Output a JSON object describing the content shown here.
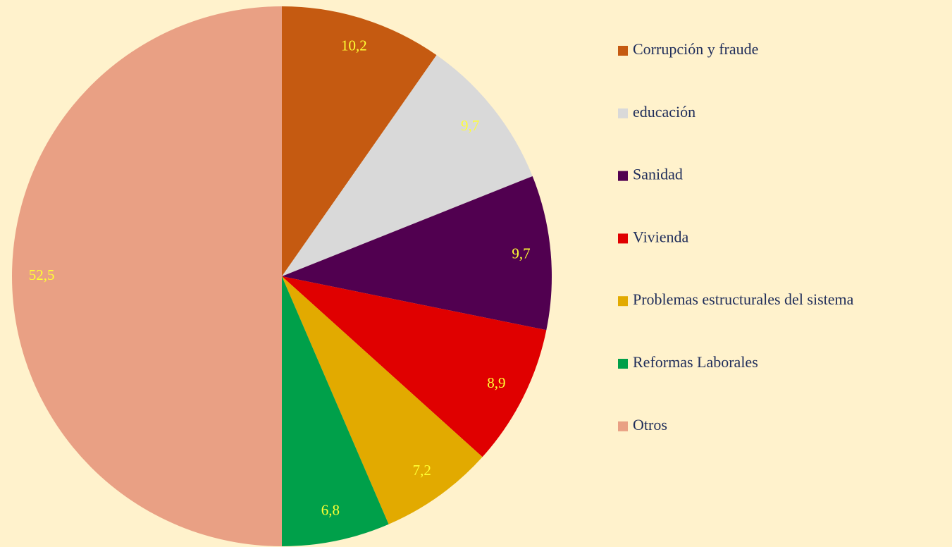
{
  "chart_data": {
    "type": "pie",
    "categories": [
      "Corrupción y fraude",
      "educación",
      "Sanidad",
      "Vivienda",
      "Problemas estructurales del sistema",
      "Reformas Laborales",
      "Otros"
    ],
    "values": [
      10.2,
      9.7,
      9.7,
      8.9,
      7.2,
      6.8,
      52.5
    ],
    "value_labels": [
      "10,2",
      "9,7",
      "9,7",
      "8,9",
      "7,2",
      "6,8",
      "52,5"
    ],
    "colors": [
      "#c55a11",
      "#d9d9d9",
      "#510050",
      "#e00000",
      "#e2aa00",
      "#00a04a",
      "#e9a084"
    ],
    "legend": "right"
  }
}
